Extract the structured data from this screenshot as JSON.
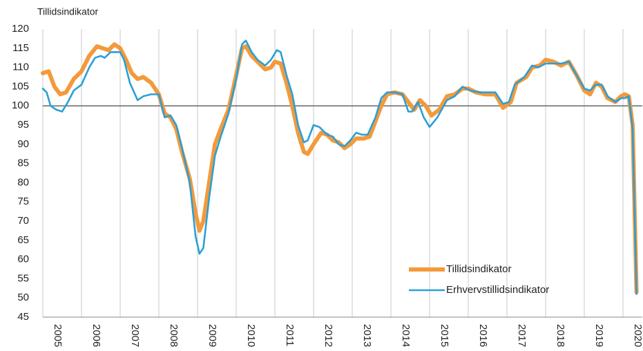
{
  "chart_data": {
    "type": "line",
    "y_label": "Tillidsindikator",
    "xlim": [
      2005,
      2020.5
    ],
    "xticks": [
      2005,
      2006,
      2007,
      2008,
      2009,
      2010,
      2011,
      2012,
      2013,
      2014,
      2015,
      2016,
      2017,
      2018,
      2019,
      2020
    ],
    "ylim": [
      45,
      120
    ],
    "yticks": [
      45,
      50,
      55,
      60,
      65,
      70,
      75,
      80,
      85,
      90,
      95,
      100,
      105,
      110,
      115,
      120
    ],
    "reference_line": 100,
    "grid": "x",
    "legend": "lower right",
    "series": [
      {
        "name": "Tillidsindikator",
        "color": "#f39a3b",
        "x": [
          2005.0,
          2005.15,
          2005.3,
          2005.45,
          2005.6,
          2005.8,
          2006.0,
          2006.2,
          2006.4,
          2006.55,
          2006.7,
          2006.85,
          2007.0,
          2007.15,
          2007.3,
          2007.45,
          2007.6,
          2007.8,
          2008.0,
          2008.15,
          2008.3,
          2008.45,
          2008.6,
          2008.8,
          2008.95,
          2009.05,
          2009.15,
          2009.3,
          2009.45,
          2009.6,
          2009.8,
          2010.0,
          2010.15,
          2010.25,
          2010.4,
          2010.6,
          2010.75,
          2010.9,
          2011.0,
          2011.15,
          2011.3,
          2011.45,
          2011.6,
          2011.75,
          2011.85,
          2012.0,
          2012.2,
          2012.35,
          2012.5,
          2012.65,
          2012.8,
          2012.95,
          2013.1,
          2013.3,
          2013.45,
          2013.6,
          2013.75,
          2013.9,
          2014.1,
          2014.3,
          2014.45,
          2014.6,
          2014.75,
          2014.9,
          2015.05,
          2015.25,
          2015.45,
          2015.65,
          2015.85,
          2016.0,
          2016.2,
          2016.45,
          2016.7,
          2016.9,
          2017.1,
          2017.25,
          2017.5,
          2017.65,
          2017.85,
          2018.0,
          2018.2,
          2018.4,
          2018.6,
          2018.8,
          2019.0,
          2019.15,
          2019.3,
          2019.45,
          2019.6,
          2019.8,
          2019.95,
          2020.05,
          2020.15,
          2020.25,
          2020.35
        ],
        "values": [
          108.5,
          109,
          105,
          103,
          103.5,
          107,
          109,
          113,
          115.5,
          115,
          114.5,
          116,
          115,
          112,
          108.5,
          107,
          107.5,
          106,
          103,
          98,
          97,
          94,
          88,
          81,
          72,
          67.5,
          70,
          80,
          90,
          94,
          99,
          108,
          115,
          115.5,
          113,
          111,
          109.5,
          110,
          111.5,
          111,
          106,
          100,
          93,
          88,
          87.5,
          90,
          93,
          92.5,
          91,
          90.5,
          89,
          90,
          91.5,
          91.5,
          92,
          96,
          100,
          103,
          103.5,
          103,
          101,
          99,
          101.5,
          100,
          97.5,
          99,
          102.5,
          103,
          104.5,
          104.5,
          103.5,
          103,
          103,
          99.5,
          101,
          106,
          107.5,
          110,
          110.5,
          112,
          111.5,
          110.5,
          111.5,
          108,
          104,
          103,
          106,
          105,
          102,
          101,
          102.5,
          103,
          102.5,
          95,
          51.5
        ]
      },
      {
        "name": "Erhvervstillidsindikator",
        "color": "#2a9fd8",
        "x": [
          2005.0,
          2005.1,
          2005.2,
          2005.35,
          2005.5,
          2005.65,
          2005.8,
          2006.0,
          2006.2,
          2006.35,
          2006.5,
          2006.6,
          2006.75,
          2007.0,
          2007.1,
          2007.25,
          2007.45,
          2007.6,
          2007.8,
          2008.0,
          2008.15,
          2008.3,
          2008.45,
          2008.6,
          2008.8,
          2008.95,
          2009.05,
          2009.15,
          2009.3,
          2009.45,
          2009.6,
          2009.8,
          2010.0,
          2010.15,
          2010.25,
          2010.4,
          2010.55,
          2010.75,
          2010.9,
          2011.05,
          2011.15,
          2011.3,
          2011.45,
          2011.6,
          2011.75,
          2011.85,
          2012.0,
          2012.15,
          2012.35,
          2012.5,
          2012.65,
          2012.8,
          2012.95,
          2013.1,
          2013.25,
          2013.4,
          2013.6,
          2013.75,
          2013.9,
          2014.1,
          2014.3,
          2014.45,
          2014.55,
          2014.7,
          2014.85,
          2015.0,
          2015.2,
          2015.45,
          2015.65,
          2015.85,
          2016.05,
          2016.3,
          2016.5,
          2016.7,
          2016.9,
          2017.05,
          2017.2,
          2017.45,
          2017.65,
          2017.8,
          2018.0,
          2018.2,
          2018.4,
          2018.6,
          2018.8,
          2019.0,
          2019.15,
          2019.3,
          2019.45,
          2019.6,
          2019.8,
          2019.95,
          2020.05,
          2020.15,
          2020.25,
          2020.35
        ],
        "values": [
          104.5,
          103.5,
          100,
          99,
          98.5,
          101,
          104,
          105.5,
          110,
          112.5,
          113,
          112.5,
          114,
          114,
          112,
          106,
          101.5,
          102.5,
          103,
          103,
          97,
          97.5,
          95,
          89,
          80,
          66,
          61.5,
          63,
          76,
          87,
          92,
          98,
          107,
          116,
          117,
          114,
          112,
          110.5,
          112,
          114.5,
          114,
          108,
          103,
          95,
          90.5,
          91,
          95,
          94.5,
          92.5,
          92,
          90,
          89.5,
          91,
          93,
          92.5,
          92.5,
          97,
          102,
          103.5,
          103.5,
          103,
          98.5,
          98.5,
          101,
          97,
          94.5,
          97,
          101.5,
          102.5,
          105,
          104,
          103.5,
          103.5,
          103.5,
          100.5,
          101,
          105.5,
          107.5,
          110.5,
          110,
          111,
          111,
          111,
          111.5,
          108,
          104.5,
          104,
          105.5,
          105.5,
          102.5,
          101,
          102,
          102,
          102.5,
          94,
          51
        ]
      }
    ]
  }
}
